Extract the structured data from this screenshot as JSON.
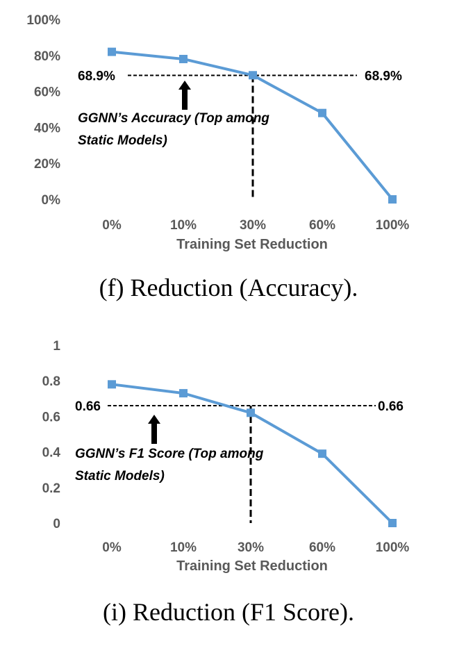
{
  "colors": {
    "series": "#5B9BD5",
    "axis_text": "#595959",
    "reference": "#000000"
  },
  "chart_data": [
    {
      "type": "line",
      "categories": [
        "0%",
        "10%",
        "30%",
        "60%",
        "100%"
      ],
      "series": [
        {
          "values": [
            82,
            78,
            69,
            48,
            0
          ]
        }
      ],
      "xlabel": "Training Set Reduction",
      "ylabel": "",
      "ylim": [
        0,
        100
      ],
      "yticks": [
        "0%",
        "20%",
        "40%",
        "60%",
        "80%",
        "100%"
      ],
      "grid": false,
      "reference": {
        "value": 68.9,
        "left_label": "68.9%",
        "right_label": "68.9%",
        "vertical_at": "30%"
      },
      "annotation": {
        "lines": [
          "GGNN’s Accuracy (Top among",
          "Static Models)"
        ],
        "arrow_points_to": "68.9%"
      },
      "caption": "(f) Reduction (Accuracy)."
    },
    {
      "type": "line",
      "categories": [
        "0%",
        "10%",
        "30%",
        "60%",
        "100%"
      ],
      "series": [
        {
          "values": [
            0.78,
            0.73,
            0.62,
            0.39,
            0
          ]
        }
      ],
      "xlabel": "Training Set Reduction",
      "ylabel": "",
      "ylim": [
        0,
        1
      ],
      "yticks": [
        "0",
        "0.2",
        "0.4",
        "0.6",
        "0.8",
        "1"
      ],
      "grid": false,
      "reference": {
        "value": 0.66,
        "left_label": "0.66",
        "right_label": "0.66",
        "vertical_at": "30%"
      },
      "annotation": {
        "lines": [
          "GGNN’s F1 Score (Top among",
          "Static Models)"
        ],
        "arrow_points_to": "0.66"
      },
      "caption": "(i) Reduction (F1 Score)."
    }
  ]
}
